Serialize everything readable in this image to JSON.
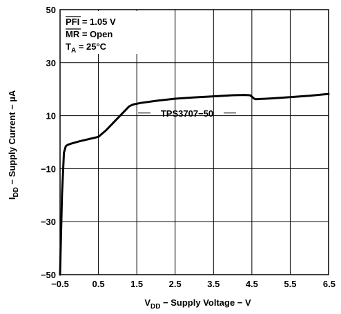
{
  "chart_data": {
    "type": "line",
    "xlabel_main": "V",
    "xlabel_sub": "DD",
    "xlabel_rest": " − Supply Voltage − V",
    "ylabel_main": "I",
    "ylabel_sub": "DD",
    "ylabel_rest": " − Supply Current − µA",
    "xlim": [
      -0.5,
      6.5
    ],
    "ylim": [
      -50,
      50
    ],
    "x_ticks": [
      -0.5,
      0.5,
      1.5,
      2.5,
      3.5,
      4.5,
      5.5,
      6.5
    ],
    "x_tick_labels": [
      "−0.5",
      "0.5",
      "1.5",
      "2.5",
      "3.5",
      "4.5",
      "5.5",
      "6.5"
    ],
    "y_ticks": [
      -50,
      -30,
      -10,
      10,
      30,
      50
    ],
    "y_tick_labels": [
      "−50",
      "−30",
      "−10",
      "10",
      "30",
      "50"
    ],
    "grid": true,
    "conditions": {
      "line1": "PFI = 1.05 V",
      "line1_overbar": "PFI",
      "line2": "MR = Open",
      "line2_overbar": "MR",
      "line3_main": "T",
      "line3_sub": "A",
      "line3_rest": " = 25°C"
    },
    "series": [
      {
        "name": "TPS3707−50",
        "x": [
          -0.5,
          -0.45,
          -0.4,
          -0.35,
          -0.3,
          -0.2,
          0.0,
          0.2,
          0.5,
          0.7,
          0.9,
          1.1,
          1.3,
          1.4,
          1.6,
          2.0,
          2.5,
          3.0,
          3.5,
          4.0,
          4.3,
          4.45,
          4.5,
          4.55,
          4.6,
          5.0,
          5.5,
          6.0,
          6.5
        ],
        "y": [
          -50,
          -20,
          -4,
          -1.5,
          -1,
          -0.5,
          0.3,
          1.0,
          2.0,
          4.5,
          7.5,
          10.5,
          13.5,
          14.2,
          14.8,
          15.6,
          16.4,
          16.9,
          17.3,
          17.7,
          17.8,
          17.7,
          17.2,
          16.5,
          16.2,
          16.5,
          17.0,
          17.5,
          18.2
        ]
      }
    ]
  }
}
